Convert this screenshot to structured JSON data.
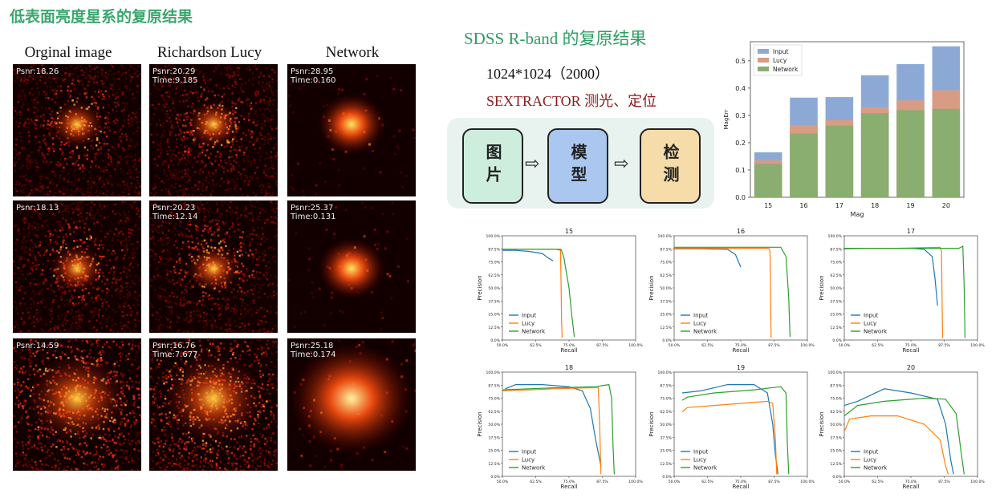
{
  "left_title": "低表面亮度星系的复原结果",
  "right_title": "SDSS R-band 的复原结果",
  "columns": [
    "Orginal image",
    "Richardson Lucy",
    "Network"
  ],
  "rows": [
    [
      {
        "psnr": "Psnr:18.26",
        "time": ""
      },
      {
        "psnr": "Psnr:20.29",
        "time": "Time:9.185"
      },
      {
        "psnr": "Psnr:28.95",
        "time": "Time:0.160"
      }
    ],
    [
      {
        "psnr": "Psnr:18.13",
        "time": ""
      },
      {
        "psnr": "Psnr:20.23",
        "time": "Time:12.14"
      },
      {
        "psnr": "Psnr:25.37",
        "time": "Time:0.131"
      }
    ],
    [
      {
        "psnr": "Psnr:14.59",
        "time": ""
      },
      {
        "psnr": "Psnr:16.76",
        "time": "Time:7.677"
      },
      {
        "psnr": "Psnr:25.18",
        "time": "Time:0.174"
      }
    ]
  ],
  "spec_line": "1024*1024（2000）",
  "sextractor_line": "SEXTRACTOR 测光、定位",
  "flow": {
    "boxes": [
      {
        "label": "图片",
        "color": "#cdeedd"
      },
      {
        "label": "模型",
        "color": "#a9c7ef"
      },
      {
        "label": "检测",
        "color": "#f6dca8"
      }
    ],
    "arrow": "⇨"
  },
  "colors": {
    "input": "#1f77b4",
    "lucy": "#ff7f0e",
    "network": "#2ca02c"
  },
  "chart_data": [
    {
      "type": "bar",
      "stacked_overlay": true,
      "categories": [
        "15",
        "16",
        "17",
        "18",
        "19",
        "20"
      ],
      "series": [
        {
          "name": "Input",
          "values": [
            0.165,
            0.365,
            0.367,
            0.447,
            0.488,
            0.553
          ],
          "color": "#8ca9d6"
        },
        {
          "name": "Lucy",
          "values": [
            0.135,
            0.265,
            0.283,
            0.33,
            0.355,
            0.392
          ],
          "color": "#d89c85"
        },
        {
          "name": "Network",
          "values": [
            0.122,
            0.234,
            0.262,
            0.308,
            0.319,
            0.324
          ],
          "color": "#8aad70"
        }
      ],
      "xlabel": "Mag",
      "ylabel": "MagErr",
      "ylim": [
        0,
        0.57
      ],
      "yticks": [
        "0.0",
        "0.1",
        "0.2",
        "0.3",
        "0.4",
        "0.5"
      ],
      "legend": "top-left"
    },
    {
      "type": "line",
      "panels": [
        {
          "title": "15",
          "series": [
            {
              "name": "Input",
              "x": [
                0.5,
                0.55,
                0.6,
                0.65,
                0.67,
                0.69
              ],
              "y": [
                0.86,
                0.86,
                0.85,
                0.83,
                0.79,
                0.76
              ]
            },
            {
              "name": "Lucy",
              "x": [
                0.5,
                0.6,
                0.7,
                0.718,
                0.72,
                0.722,
                0.724
              ],
              "y": [
                0.87,
                0.87,
                0.87,
                0.86,
                0.6,
                0.2,
                0.02
              ]
            },
            {
              "name": "Network",
              "x": [
                0.5,
                0.6,
                0.72,
                0.73,
                0.74,
                0.75,
                0.76,
                0.77
              ],
              "y": [
                0.87,
                0.87,
                0.87,
                0.8,
                0.65,
                0.5,
                0.25,
                0.03
              ]
            }
          ]
        },
        {
          "title": "16",
          "series": [
            {
              "name": "Input",
              "x": [
                0.5,
                0.6,
                0.7,
                0.73,
                0.75
              ],
              "y": [
                0.875,
                0.875,
                0.87,
                0.82,
                0.7
              ]
            },
            {
              "name": "Lucy",
              "x": [
                0.5,
                0.7,
                0.855,
                0.86,
                0.862,
                0.864
              ],
              "y": [
                0.88,
                0.88,
                0.88,
                0.85,
                0.4,
                0.02
              ]
            },
            {
              "name": "Network",
              "x": [
                0.5,
                0.7,
                0.9,
                0.92,
                0.93,
                0.935
              ],
              "y": [
                0.89,
                0.89,
                0.89,
                0.8,
                0.4,
                0.03
              ]
            }
          ]
        },
        {
          "title": "17",
          "series": [
            {
              "name": "Input",
              "x": [
                0.5,
                0.6,
                0.75,
                0.8,
                0.83,
                0.84,
                0.85
              ],
              "y": [
                0.875,
                0.88,
                0.88,
                0.87,
                0.8,
                0.6,
                0.33
              ]
            },
            {
              "name": "Lucy",
              "x": [
                0.5,
                0.7,
                0.86,
                0.865,
                0.867,
                0.869
              ],
              "y": [
                0.88,
                0.88,
                0.89,
                0.85,
                0.4,
                0.02
              ]
            },
            {
              "name": "Network",
              "x": [
                0.5,
                0.7,
                0.93,
                0.945,
                0.95,
                0.953
              ],
              "y": [
                0.88,
                0.88,
                0.88,
                0.9,
                0.5,
                0.02
              ]
            }
          ]
        },
        {
          "title": "18",
          "series": [
            {
              "name": "Input",
              "x": [
                0.51,
                0.53,
                0.55,
                0.65,
                0.75,
                0.8,
                0.83,
                0.85,
                0.87
              ],
              "y": [
                0.84,
                0.86,
                0.88,
                0.88,
                0.86,
                0.82,
                0.65,
                0.35,
                0.1
              ]
            },
            {
              "name": "Lucy",
              "x": [
                0.5,
                0.6,
                0.7,
                0.83,
                0.86,
                0.865,
                0.87
              ],
              "y": [
                0.82,
                0.83,
                0.84,
                0.85,
                0.85,
                0.5,
                0.02
              ]
            },
            {
              "name": "Network",
              "x": [
                0.5,
                0.6,
                0.7,
                0.85,
                0.9,
                0.91,
                0.915,
                0.92
              ],
              "y": [
                0.83,
                0.84,
                0.85,
                0.86,
                0.88,
                0.75,
                0.3,
                0.02
              ]
            }
          ]
        },
        {
          "title": "19",
          "series": [
            {
              "name": "Input",
              "x": [
                0.53,
                0.6,
                0.7,
                0.8,
                0.85,
                0.87,
                0.88,
                0.89
              ],
              "y": [
                0.8,
                0.82,
                0.88,
                0.88,
                0.8,
                0.5,
                0.2,
                0.02
              ]
            },
            {
              "name": "Lucy",
              "x": [
                0.53,
                0.55,
                0.65,
                0.75,
                0.85,
                0.87,
                0.88,
                0.885
              ],
              "y": [
                0.62,
                0.66,
                0.68,
                0.7,
                0.72,
                0.7,
                0.35,
                0.02
              ]
            },
            {
              "name": "Network",
              "x": [
                0.53,
                0.55,
                0.65,
                0.8,
                0.9,
                0.92,
                0.925,
                0.93
              ],
              "y": [
                0.73,
                0.76,
                0.8,
                0.83,
                0.86,
                0.8,
                0.3,
                0.02
              ]
            }
          ]
        },
        {
          "title": "20",
          "series": [
            {
              "name": "Input",
              "x": [
                0.5,
                0.55,
                0.65,
                0.75,
                0.85,
                0.88,
                0.9,
                0.91
              ],
              "y": [
                0.68,
                0.72,
                0.84,
                0.8,
                0.74,
                0.5,
                0.15,
                0.02
              ]
            },
            {
              "name": "Lucy",
              "x": [
                0.5,
                0.52,
                0.6,
                0.7,
                0.8,
                0.86,
                0.88,
                0.89
              ],
              "y": [
                0.43,
                0.55,
                0.58,
                0.58,
                0.5,
                0.35,
                0.1,
                0.02
              ]
            },
            {
              "name": "Network",
              "x": [
                0.5,
                0.55,
                0.65,
                0.8,
                0.88,
                0.92,
                0.94,
                0.95
              ],
              "y": [
                0.58,
                0.68,
                0.72,
                0.75,
                0.74,
                0.6,
                0.2,
                0.02
              ]
            }
          ]
        }
      ],
      "xlabel": "Recall",
      "ylabel": "Precision",
      "xlim": [
        0.5,
        1.0
      ],
      "ylim": [
        0,
        1.0
      ],
      "xticks": [
        "50.0%",
        "62.5%",
        "75.0%",
        "87.5%",
        "100.0%"
      ],
      "yticks": [
        "0.0%",
        "12.5%",
        "25.0%",
        "37.5%",
        "50.0%",
        "62.5%",
        "75.0%",
        "87.5%",
        "100.0%"
      ],
      "legend": "lower-left",
      "legend_labels": [
        "Input",
        "Lucy",
        "Network"
      ]
    }
  ]
}
